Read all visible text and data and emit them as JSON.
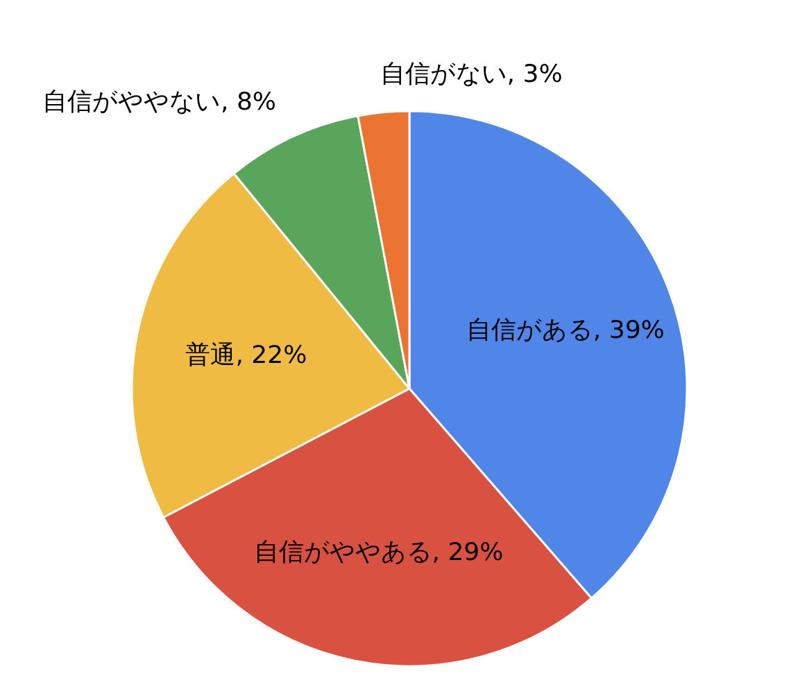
{
  "chart_data": {
    "type": "pie",
    "categories": [
      "自信がある",
      "自信がややある",
      "普通",
      "自信がややない",
      "自信がない"
    ],
    "values": [
      39,
      29,
      22,
      8,
      3
    ],
    "colors": [
      "#5086e8",
      "#d95140",
      "#f0bb42",
      "#5aa55c",
      "#ec7433"
    ],
    "value_labels": [
      "39%",
      "29%",
      "22%",
      "8%",
      "3%"
    ]
  }
}
